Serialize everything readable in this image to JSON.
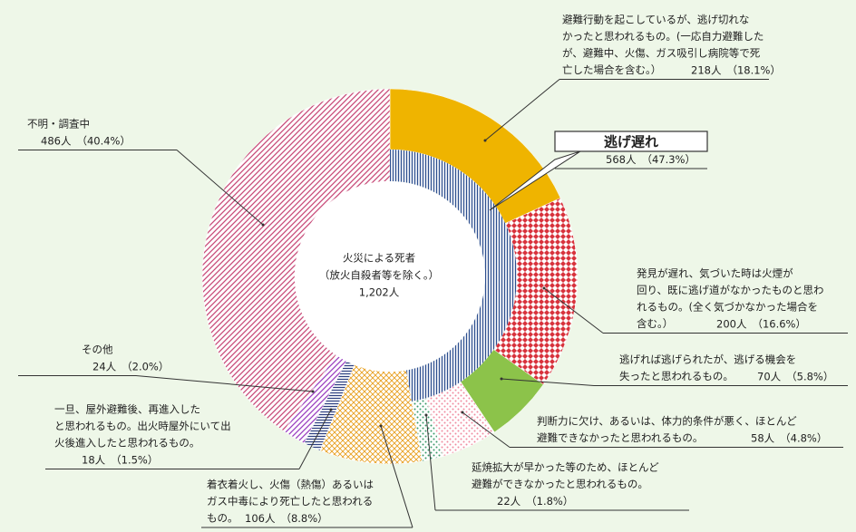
{
  "chart_data": {
    "type": "donut",
    "center_label": [
      "火災による死者",
      "（放火自殺者等を除く。）",
      "1,202人"
    ],
    "group": {
      "name": "逃げ遅れ",
      "value": 568,
      "value_label": "568人",
      "percent_label": "（47.3%）",
      "color": "#2d4f8f",
      "pattern": "vlines"
    },
    "segments": [
      {
        "lines": [
          "避難行動を起こしているが、逃げ切れな",
          "かったと思われるもの。(一応自力避難した",
          "が、避難中、火傷、ガス吸引し病院等で死",
          "亡した場合を含む。）"
        ],
        "value": 218,
        "value_label": "218人",
        "percent_label": "（18.1%）",
        "color": "#efb400",
        "pattern": "solid",
        "in_group": true
      },
      {
        "lines": [
          "発見が遅れ、気づいた時は火煙が",
          "回り、既に逃げ道がなかったものと思わ",
          "れるもの。(全く気づかなかった場合を",
          "含む。）"
        ],
        "value": 200,
        "value_label": "200人",
        "percent_label": "（16.6%）",
        "color": "#d8323c",
        "pattern": "check",
        "in_group": true
      },
      {
        "lines": [
          "逃げれば逃げられたが、逃げる機会を",
          "失ったと思われるもの。"
        ],
        "value": 70,
        "value_label": "70人",
        "percent_label": "（5.8%）",
        "color": "#8cc34a",
        "pattern": "solid",
        "in_group": true
      },
      {
        "lines": [
          "判断力に欠け、あるいは、体力的条件が悪く、ほとんど",
          "避難できなかったと思われるもの。"
        ],
        "value": 58,
        "value_label": "58人",
        "percent_label": "（4.8%）",
        "color": "#f08aa0",
        "pattern": "dots",
        "in_group": true
      },
      {
        "lines": [
          "延焼拡大が早かった等のため、ほとんど",
          "避難ができなかったと思われるもの。"
        ],
        "value": 22,
        "value_label": "22人",
        "percent_label": "（1.8%）",
        "color": "#3a9a6a",
        "pattern": "dots",
        "in_group": true
      },
      {
        "lines": [
          "着衣着火し、火傷（熱傷）あるいは",
          "ガス中毒により死亡したと思われる",
          "もの。"
        ],
        "value": 106,
        "value_label": "106人",
        "percent_label": "（8.8%）",
        "color": "#e8a020",
        "pattern": "cross",
        "in_group": false
      },
      {
        "lines": [
          "一旦、屋外避難後、再進入した",
          "と思われるもの。出火時屋外にいて出",
          "火後進入したと思われるもの。"
        ],
        "value": 18,
        "value_label": "18人",
        "percent_label": "（1.5%）",
        "color": "#2d3f80",
        "pattern": "hlines",
        "in_group": false
      },
      {
        "lines": [
          "その他"
        ],
        "value": 24,
        "value_label": "24人",
        "percent_label": "（2.0%）",
        "color": "#9a3fc0",
        "pattern": "diag",
        "in_group": false
      },
      {
        "lines": [
          "不明・調査中"
        ],
        "value": 486,
        "value_label": "486人",
        "percent_label": "（40.4%）",
        "color": "#c84a78",
        "pattern": "diag",
        "in_group": false
      }
    ]
  }
}
